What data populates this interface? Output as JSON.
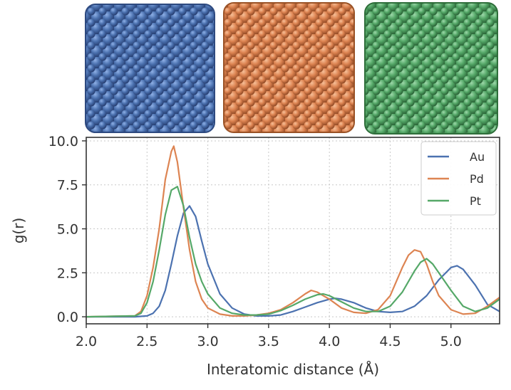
{
  "chart_data": {
    "type": "line",
    "xlabel": "Interatomic distance (Å)",
    "ylabel": "g(r)",
    "xlim": [
      2.0,
      5.4
    ],
    "ylim": [
      -0.4,
      10.2
    ],
    "x_ticks": [
      "2.0",
      "2.5",
      "3.0",
      "3.5",
      "4.0",
      "4.5",
      "5.0"
    ],
    "y_ticks": [
      "0.0",
      "2.5",
      "5.0",
      "7.5",
      "10.0"
    ],
    "grid": true,
    "legend_position": "top-right",
    "series": [
      {
        "name": "Au",
        "color": "#4c72b0",
        "x": [
          2.0,
          2.4,
          2.5,
          2.55,
          2.6,
          2.65,
          2.7,
          2.75,
          2.8,
          2.85,
          2.9,
          2.95,
          3.0,
          3.1,
          3.2,
          3.3,
          3.4,
          3.5,
          3.6,
          3.7,
          3.8,
          3.9,
          4.0,
          4.05,
          4.1,
          4.2,
          4.3,
          4.4,
          4.5,
          4.6,
          4.7,
          4.8,
          4.9,
          5.0,
          5.05,
          5.1,
          5.2,
          5.3,
          5.4
        ],
        "y": [
          0.0,
          0.0,
          0.05,
          0.2,
          0.6,
          1.5,
          3.0,
          4.6,
          5.9,
          6.3,
          5.7,
          4.3,
          3.0,
          1.3,
          0.5,
          0.15,
          0.05,
          0.05,
          0.1,
          0.3,
          0.55,
          0.8,
          1.0,
          1.05,
          1.0,
          0.8,
          0.5,
          0.3,
          0.25,
          0.3,
          0.6,
          1.2,
          2.1,
          2.8,
          2.9,
          2.7,
          1.8,
          0.7,
          0.3
        ]
      },
      {
        "name": "Pd",
        "color": "#dd8452",
        "x": [
          2.0,
          2.4,
          2.45,
          2.5,
          2.55,
          2.6,
          2.65,
          2.7,
          2.72,
          2.75,
          2.8,
          2.85,
          2.9,
          2.95,
          3.0,
          3.1,
          3.2,
          3.3,
          3.4,
          3.5,
          3.6,
          3.7,
          3.8,
          3.85,
          3.9,
          4.0,
          4.1,
          4.2,
          4.3,
          4.4,
          4.5,
          4.55,
          4.6,
          4.65,
          4.7,
          4.75,
          4.8,
          4.85,
          4.9,
          5.0,
          5.1,
          5.2,
          5.3,
          5.4
        ],
        "y": [
          0.0,
          0.05,
          0.3,
          1.2,
          2.8,
          5.0,
          7.8,
          9.4,
          9.7,
          8.8,
          6.2,
          3.8,
          2.0,
          1.0,
          0.5,
          0.15,
          0.05,
          0.05,
          0.1,
          0.2,
          0.4,
          0.8,
          1.3,
          1.5,
          1.4,
          1.0,
          0.5,
          0.25,
          0.2,
          0.4,
          1.2,
          2.0,
          2.8,
          3.5,
          3.8,
          3.7,
          3.0,
          2.0,
          1.2,
          0.4,
          0.15,
          0.2,
          0.6,
          1.1
        ]
      },
      {
        "name": "Pt",
        "color": "#55a868",
        "x": [
          2.0,
          2.4,
          2.45,
          2.5,
          2.55,
          2.6,
          2.65,
          2.7,
          2.75,
          2.8,
          2.85,
          2.9,
          2.95,
          3.0,
          3.1,
          3.2,
          3.3,
          3.4,
          3.5,
          3.6,
          3.7,
          3.8,
          3.9,
          3.95,
          4.0,
          4.1,
          4.2,
          4.3,
          4.4,
          4.5,
          4.6,
          4.7,
          4.75,
          4.8,
          4.85,
          4.9,
          5.0,
          5.1,
          5.2,
          5.3,
          5.4
        ],
        "y": [
          0.0,
          0.05,
          0.2,
          0.8,
          2.0,
          3.8,
          5.8,
          7.2,
          7.4,
          6.3,
          4.5,
          3.0,
          2.0,
          1.3,
          0.5,
          0.2,
          0.1,
          0.1,
          0.15,
          0.35,
          0.65,
          1.0,
          1.25,
          1.3,
          1.2,
          0.85,
          0.5,
          0.3,
          0.3,
          0.6,
          1.4,
          2.6,
          3.1,
          3.3,
          3.0,
          2.5,
          1.5,
          0.6,
          0.3,
          0.5,
          1.0
        ]
      }
    ],
    "images": [
      {
        "name": "Au nanocube",
        "color": "#4c72b0"
      },
      {
        "name": "Pd nanocube",
        "color": "#dd8452"
      },
      {
        "name": "Pt nanocube",
        "color": "#55a868"
      }
    ]
  }
}
